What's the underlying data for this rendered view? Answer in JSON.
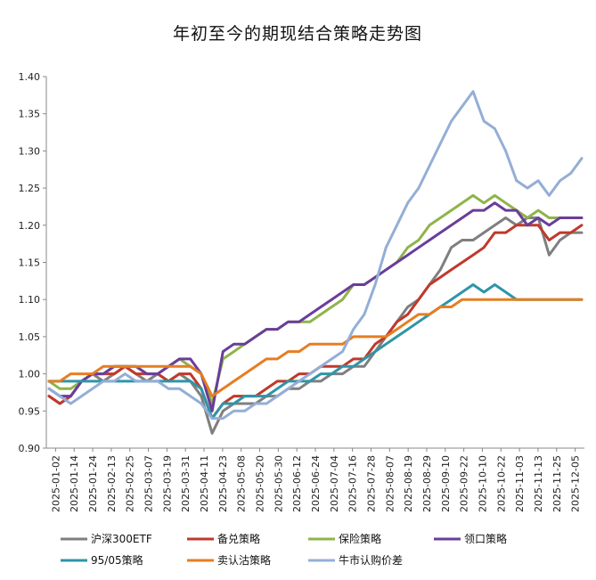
{
  "chart_data": {
    "type": "line",
    "title": "年初至今的期现结合策略走势图",
    "xlabel": "",
    "ylabel": "",
    "ylim": [
      0.9,
      1.4
    ],
    "yticks": [
      "0.90",
      "0.95",
      "1.00",
      "1.05",
      "1.10",
      "1.15",
      "1.20",
      "1.25",
      "1.30",
      "1.35",
      "1.40"
    ],
    "x_ticks": [
      "2025-01-02",
      "2025-01-14",
      "2025-01-24",
      "2025-02-13",
      "2025-02-25",
      "2025-03-07",
      "2025-03-19",
      "2025-03-31",
      "2025-04-11",
      "2025-04-23",
      "2025-05-08",
      "2025-05-20",
      "2025-05-30",
      "2025-06-12",
      "2025-06-24",
      "2025-07-04",
      "2025-07-16",
      "2025-07-28",
      "2025-08-07",
      "2025-08-19",
      "2025-08-29",
      "2025-09-10",
      "2025-09-22",
      "2025-10-10",
      "2025-10-22",
      "2025-11-03",
      "2025-11-13",
      "2025-11-25",
      "2025-12-05"
    ],
    "legend_position": "bottom",
    "series": [
      {
        "name": "沪深300ETF",
        "color": "#7f7f7f",
        "values": [
          0.97,
          0.96,
          0.97,
          0.99,
          1.0,
          0.99,
          1.0,
          1.01,
          1.0,
          0.99,
          1.0,
          0.99,
          1.0,
          0.99,
          0.97,
          0.92,
          0.95,
          0.96,
          0.96,
          0.96,
          0.97,
          0.97,
          0.98,
          0.98,
          0.99,
          0.99,
          1.0,
          1.0,
          1.01,
          1.01,
          1.03,
          1.05,
          1.07,
          1.09,
          1.1,
          1.12,
          1.14,
          1.17,
          1.18,
          1.18,
          1.19,
          1.2,
          1.21,
          1.2,
          1.21,
          1.21,
          1.16,
          1.18,
          1.19,
          1.19
        ]
      },
      {
        "name": "备兑策略",
        "color": "#c0392b",
        "values": [
          0.97,
          0.96,
          0.97,
          0.99,
          1.0,
          1.0,
          1.0,
          1.01,
          1.0,
          1.0,
          1.0,
          0.99,
          1.0,
          1.0,
          0.98,
          0.94,
          0.96,
          0.97,
          0.97,
          0.97,
          0.98,
          0.99,
          0.99,
          1.0,
          1.0,
          1.01,
          1.01,
          1.01,
          1.02,
          1.02,
          1.04,
          1.05,
          1.07,
          1.08,
          1.1,
          1.12,
          1.13,
          1.14,
          1.15,
          1.16,
          1.17,
          1.19,
          1.19,
          1.2,
          1.2,
          1.2,
          1.18,
          1.19,
          1.19,
          1.2
        ]
      },
      {
        "name": "保险策略",
        "color": "#8fb44a",
        "values": [
          0.99,
          0.98,
          0.98,
          0.99,
          1.0,
          1.0,
          1.01,
          1.01,
          1.01,
          1.0,
          1.0,
          1.01,
          1.02,
          1.01,
          1.0,
          0.96,
          1.02,
          1.03,
          1.04,
          1.05,
          1.06,
          1.06,
          1.07,
          1.07,
          1.07,
          1.08,
          1.09,
          1.1,
          1.12,
          1.12,
          1.13,
          1.14,
          1.15,
          1.17,
          1.18,
          1.2,
          1.21,
          1.22,
          1.23,
          1.24,
          1.23,
          1.24,
          1.23,
          1.22,
          1.21,
          1.22,
          1.21,
          1.21,
          1.21,
          1.21
        ]
      },
      {
        "name": "领口策略",
        "color": "#6a3d9a",
        "values": [
          0.98,
          0.97,
          0.97,
          0.99,
          1.0,
          1.0,
          1.01,
          1.01,
          1.01,
          1.0,
          1.0,
          1.01,
          1.02,
          1.02,
          1.0,
          0.95,
          1.03,
          1.04,
          1.04,
          1.05,
          1.06,
          1.06,
          1.07,
          1.07,
          1.08,
          1.09,
          1.1,
          1.11,
          1.12,
          1.12,
          1.13,
          1.14,
          1.15,
          1.16,
          1.17,
          1.18,
          1.19,
          1.2,
          1.21,
          1.22,
          1.22,
          1.23,
          1.22,
          1.22,
          1.2,
          1.21,
          1.2,
          1.21,
          1.21,
          1.21
        ]
      },
      {
        "name": "95/05策略",
        "color": "#2e95a8",
        "values": [
          0.99,
          0.99,
          0.99,
          0.99,
          0.99,
          0.99,
          0.99,
          0.99,
          0.99,
          0.99,
          0.99,
          0.99,
          0.99,
          0.99,
          0.98,
          0.94,
          0.96,
          0.96,
          0.97,
          0.97,
          0.97,
          0.98,
          0.99,
          0.99,
          0.99,
          1.0,
          1.0,
          1.01,
          1.01,
          1.02,
          1.03,
          1.04,
          1.05,
          1.06,
          1.07,
          1.08,
          1.09,
          1.1,
          1.11,
          1.12,
          1.11,
          1.12,
          1.11,
          1.1,
          1.1,
          1.1,
          1.1,
          1.1,
          1.1,
          1.1
        ]
      },
      {
        "name": "卖认沽策略",
        "color": "#e67e22",
        "values": [
          0.99,
          0.99,
          1.0,
          1.0,
          1.0,
          1.01,
          1.01,
          1.01,
          1.01,
          1.01,
          1.01,
          1.01,
          1.01,
          1.01,
          1.0,
          0.97,
          0.98,
          0.99,
          1.0,
          1.01,
          1.02,
          1.02,
          1.03,
          1.03,
          1.04,
          1.04,
          1.04,
          1.04,
          1.05,
          1.05,
          1.05,
          1.05,
          1.06,
          1.07,
          1.08,
          1.08,
          1.09,
          1.09,
          1.1,
          1.1,
          1.1,
          1.1,
          1.1,
          1.1,
          1.1,
          1.1,
          1.1,
          1.1,
          1.1,
          1.1
        ]
      },
      {
        "name": "牛市认购价差",
        "color": "#94aed6",
        "values": [
          0.98,
          0.97,
          0.96,
          0.97,
          0.98,
          0.99,
          0.99,
          1.0,
          0.99,
          0.99,
          0.99,
          0.98,
          0.98,
          0.97,
          0.96,
          0.94,
          0.94,
          0.95,
          0.95,
          0.96,
          0.96,
          0.97,
          0.98,
          0.99,
          1.0,
          1.01,
          1.02,
          1.03,
          1.06,
          1.08,
          1.12,
          1.17,
          1.2,
          1.23,
          1.25,
          1.28,
          1.31,
          1.34,
          1.36,
          1.38,
          1.34,
          1.33,
          1.3,
          1.26,
          1.25,
          1.26,
          1.24,
          1.26,
          1.27,
          1.29
        ]
      }
    ]
  }
}
